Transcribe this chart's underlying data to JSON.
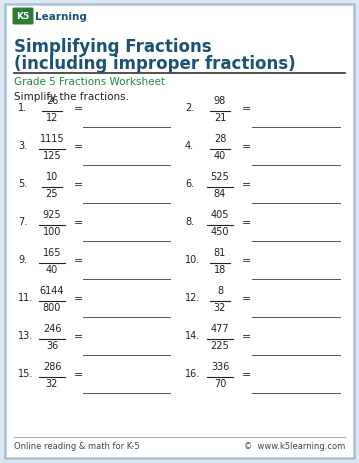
{
  "title_line1": "Simplifying Fractions",
  "title_line2": "(including improper fractions)",
  "subtitle": "Grade 5 Fractions Worksheet",
  "instruction": "Simplify the fractions.",
  "title_color": "#1a5276",
  "subtitle_color": "#1a8c3a",
  "border_color": "#a8c0d8",
  "background_color": "#dce8f0",
  "page_background": "#ffffff",
  "footer_left": "Online reading & math for K-5",
  "footer_right": "©  www.k5learning.com",
  "problems": [
    {
      "num": "1",
      "numerator": "26",
      "denominator": "12",
      "col": 0
    },
    {
      "num": "2",
      "numerator": "98",
      "denominator": "21",
      "col": 1
    },
    {
      "num": "3",
      "numerator": "1115",
      "denominator": "125",
      "col": 0
    },
    {
      "num": "4",
      "numerator": "28",
      "denominator": "40",
      "col": 1
    },
    {
      "num": "5",
      "numerator": "10",
      "denominator": "25",
      "col": 0
    },
    {
      "num": "6",
      "numerator": "525",
      "denominator": "84",
      "col": 1
    },
    {
      "num": "7",
      "numerator": "925",
      "denominator": "100",
      "col": 0
    },
    {
      "num": "8",
      "numerator": "405",
      "denominator": "450",
      "col": 1
    },
    {
      "num": "9",
      "numerator": "165",
      "denominator": "40",
      "col": 0
    },
    {
      "num": "10",
      "numerator": "81",
      "denominator": "18",
      "col": 1
    },
    {
      "num": "11",
      "numerator": "6144",
      "denominator": "800",
      "col": 0
    },
    {
      "num": "12",
      "numerator": "8",
      "denominator": "32",
      "col": 1
    },
    {
      "num": "13",
      "numerator": "246",
      "denominator": "36",
      "col": 0
    },
    {
      "num": "14",
      "numerator": "477",
      "denominator": "225",
      "col": 1
    },
    {
      "num": "15",
      "numerator": "286",
      "denominator": "32",
      "col": 0
    },
    {
      "num": "16",
      "numerator": "336",
      "denominator": "70",
      "col": 1
    }
  ]
}
